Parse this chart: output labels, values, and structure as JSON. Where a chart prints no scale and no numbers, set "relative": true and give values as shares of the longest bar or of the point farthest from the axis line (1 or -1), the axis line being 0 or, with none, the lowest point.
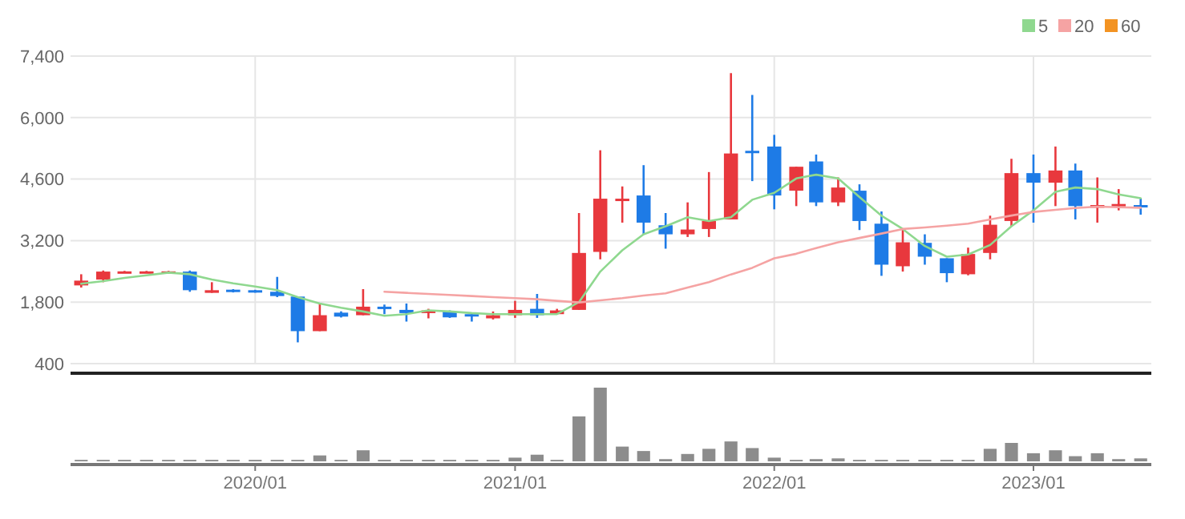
{
  "chart_data": [
    {
      "type": "candlestick",
      "x": [
        "2019-05",
        "2019-06",
        "2019-07",
        "2019-08",
        "2019-09",
        "2019-10",
        "2019-11",
        "2019-12",
        "2020-01",
        "2020-02",
        "2020-03",
        "2020-04",
        "2020-05",
        "2020-06",
        "2020-07",
        "2020-08",
        "2020-09",
        "2020-10",
        "2020-11",
        "2020-12",
        "2021-01",
        "2021-02",
        "2021-03",
        "2021-04",
        "2021-05",
        "2021-06",
        "2021-07",
        "2021-08",
        "2021-09",
        "2021-10",
        "2021-11",
        "2021-12",
        "2022-01",
        "2022-02",
        "2022-03",
        "2022-04",
        "2022-05",
        "2022-06",
        "2022-07",
        "2022-08",
        "2022-09",
        "2022-10",
        "2022-11",
        "2022-12",
        "2023-01",
        "2023-02",
        "2023-03",
        "2023-04",
        "2023-05",
        "2023-06"
      ],
      "ohlc": [
        [
          2180,
          2434,
          2132,
          2289
        ],
        [
          2313,
          2519,
          2253,
          2495
        ],
        [
          2480,
          2510,
          2470,
          2500
        ],
        [
          2490,
          2510,
          2480,
          2500
        ],
        [
          2490,
          2510,
          2480,
          2500
        ],
        [
          2495,
          2519,
          2035,
          2071
        ],
        [
          2011,
          2253,
          2011,
          2071
        ],
        [
          2083,
          2095,
          2020,
          2035
        ],
        [
          2071,
          2080,
          2015,
          2023
        ],
        [
          2035,
          2374,
          1914,
          1938
        ],
        [
          1926,
          1926,
          884,
          1139
        ],
        [
          1139,
          1768,
          1139,
          1502
        ],
        [
          1560,
          1590,
          1450,
          1470
        ],
        [
          1502,
          2095,
          1502,
          1696
        ],
        [
          1696,
          1744,
          1526,
          1647
        ],
        [
          1623,
          1768,
          1357,
          1550
        ],
        [
          1550,
          1647,
          1430,
          1611
        ],
        [
          1587,
          1611,
          1441,
          1453
        ],
        [
          1526,
          1526,
          1357,
          1478
        ],
        [
          1430,
          1587,
          1405,
          1502
        ],
        [
          1502,
          1829,
          1441,
          1623
        ],
        [
          1647,
          1986,
          1441,
          1502
        ],
        [
          1526,
          1647,
          1526,
          1611
        ],
        [
          1623,
          3827,
          1623,
          2919
        ],
        [
          2943,
          5256,
          2774,
          4154
        ],
        [
          4118,
          4433,
          3609,
          4154
        ],
        [
          4227,
          4917,
          3343,
          3609
        ],
        [
          3549,
          3827,
          3016,
          3343
        ],
        [
          3343,
          4070,
          3282,
          3452
        ],
        [
          3464,
          4760,
          3282,
          3646
        ],
        [
          3682,
          7012,
          3682,
          5183
        ],
        [
          5244,
          6515,
          4554,
          5208
        ],
        [
          5341,
          5607,
          3912,
          4227
        ],
        [
          4336,
          4881,
          3985,
          4881
        ],
        [
          5002,
          5159,
          3985,
          4070
        ],
        [
          4070,
          4638,
          3985,
          4408
        ],
        [
          4336,
          4481,
          3440,
          3646
        ],
        [
          3585,
          3864,
          2398,
          2652
        ],
        [
          2616,
          3464,
          2495,
          3161
        ],
        [
          3149,
          3343,
          2652,
          2834
        ],
        [
          2798,
          2798,
          2253,
          2459
        ],
        [
          2434,
          3040,
          2410,
          2895
        ],
        [
          2919,
          3767,
          2774,
          3561
        ],
        [
          3646,
          5062,
          3525,
          4736
        ],
        [
          4736,
          5159,
          3609,
          4518
        ],
        [
          4518,
          5341,
          3985,
          4796
        ],
        [
          4796,
          4953,
          3682,
          3985
        ],
        [
          3948,
          4638,
          3609,
          4009
        ],
        [
          3985,
          4372,
          3888,
          4033
        ],
        [
          4009,
          4166,
          3791,
          3985
        ]
      ],
      "colors": [
        "#e8383d",
        "#e8383d",
        "#e8383d",
        "#e8383d",
        "#e8383d",
        "#1e7be6",
        "#e8383d",
        "#1e7be6",
        "#1e7be6",
        "#1e7be6",
        "#1e7be6",
        "#e8383d",
        "#1e7be6",
        "#e8383d",
        "#1e7be6",
        "#1e7be6",
        "#e8383d",
        "#1e7be6",
        "#1e7be6",
        "#e8383d",
        "#e8383d",
        "#1e7be6",
        "#e8383d",
        "#e8383d",
        "#e8383d",
        "#e8383d",
        "#1e7be6",
        "#1e7be6",
        "#e8383d",
        "#e8383d",
        "#e8383d",
        "#1e7be6",
        "#1e7be6",
        "#e8383d",
        "#1e7be6",
        "#e8383d",
        "#1e7be6",
        "#1e7be6",
        "#e8383d",
        "#1e7be6",
        "#1e7be6",
        "#e8383d",
        "#e8383d",
        "#e8383d",
        "#1e7be6",
        "#e8383d",
        "#1e7be6",
        "#e8383d",
        "#e8383d",
        "#1e7be6"
      ],
      "series": [
        {
          "name": "5",
          "type": "line",
          "color": "#8fd88f",
          "values": [
            2217,
            2277,
            2350,
            2410,
            2471,
            2434,
            2313,
            2229,
            2156,
            2071,
            1914,
            1768,
            1672,
            1587,
            1490,
            1526,
            1611,
            1587,
            1550,
            1526,
            1526,
            1526,
            1526,
            1800,
            2495,
            2980,
            3343,
            3525,
            3730,
            3646,
            3730,
            4130,
            4287,
            4614,
            4700,
            4614,
            4190,
            3767,
            3464,
            3076,
            2834,
            2883,
            3100,
            3525,
            3888,
            4312,
            4408,
            4372,
            4251,
            4166
          ]
        },
        {
          "name": "20",
          "type": "line",
          "color": "#f5a3a3",
          "values": [
            null,
            null,
            null,
            null,
            null,
            null,
            null,
            null,
            null,
            null,
            null,
            null,
            null,
            null,
            2035,
            2011,
            1986,
            1962,
            1938,
            1914,
            1890,
            1865,
            1829,
            1792,
            1840,
            1890,
            1950,
            2000,
            2130,
            2253,
            2430,
            2580,
            2798,
            2900,
            3030,
            3161,
            3260,
            3360,
            3464,
            3500,
            3540,
            3585,
            3680,
            3770,
            3852,
            3900,
            3940,
            3973,
            3960,
            3948
          ]
        },
        {
          "name": "60",
          "type": "line",
          "color": "#f39322",
          "values": [
            null,
            null,
            null,
            null,
            null,
            null,
            null,
            null,
            null,
            null,
            null,
            null,
            null,
            null,
            null,
            null,
            null,
            null,
            null,
            null,
            null,
            null,
            null,
            null,
            null,
            null,
            null,
            null,
            null,
            null,
            null,
            null,
            null,
            null,
            null,
            null,
            null,
            null,
            null,
            null,
            null,
            null,
            null,
            null,
            null,
            null,
            null,
            null,
            null,
            null
          ]
        }
      ],
      "xlim": [
        "2019-04-16",
        "2023-06-16"
      ],
      "xticks": [
        {
          "value": "2020-01",
          "label": null
        },
        {
          "value": "2021-01",
          "label": null
        },
        {
          "value": "2022-01",
          "label": null
        },
        {
          "value": "2023-01",
          "label": null
        }
      ],
      "ylim": [
        400,
        7400
      ],
      "yticks": [
        400,
        {
          "value": 1800,
          "label": "1,800"
        },
        {
          "value": 3200,
          "label": "3,200"
        },
        {
          "value": 4600,
          "label": "4,600"
        },
        {
          "value": 6000,
          "label": "6,000"
        },
        {
          "value": 7400,
          "label": "7,400"
        }
      ],
      "grid": true,
      "tick_labels": "y",
      "legend": "top right"
    },
    {
      "type": "bar",
      "relative": true,
      "color": "#8c8c8c",
      "x": [
        "2019-05",
        "2019-06",
        "2019-07",
        "2019-08",
        "2019-09",
        "2019-10",
        "2019-11",
        "2019-12",
        "2020-01",
        "2020-02",
        "2020-03",
        "2020-04",
        "2020-05",
        "2020-06",
        "2020-07",
        "2020-08",
        "2020-09",
        "2020-10",
        "2020-11",
        "2020-12",
        "2021-01",
        "2021-02",
        "2021-03",
        "2021-04",
        "2021-05",
        "2021-06",
        "2021-07",
        "2021-08",
        "2021-09",
        "2021-10",
        "2021-11",
        "2021-12",
        "2022-01",
        "2022-02",
        "2022-03",
        "2022-04",
        "2022-05",
        "2022-06",
        "2022-07",
        "2022-08",
        "2022-09",
        "2022-10",
        "2022-11",
        "2022-12",
        "2023-01",
        "2023-02",
        "2023-03",
        "2023-04",
        "2023-05",
        "2023-06"
      ],
      "values": [
        0.02,
        0.02,
        0.02,
        0.02,
        0.02,
        0.02,
        0.02,
        0.02,
        0.02,
        0.02,
        0.02,
        0.08,
        0.02,
        0.15,
        0.02,
        0.02,
        0.02,
        0.02,
        0.02,
        0.02,
        0.05,
        0.09,
        0.02,
        0.61,
        1,
        0.2,
        0.14,
        0.03,
        0.1,
        0.17,
        0.27,
        0.18,
        0.05,
        0.02,
        0.03,
        0.04,
        0.02,
        0.02,
        0.02,
        0.02,
        0.02,
        0.02,
        0.17,
        0.25,
        0.11,
        0.15,
        0.07,
        0.11,
        0.03,
        0.04
      ],
      "xlim": [
        "2019-04-16",
        "2023-06-16"
      ],
      "xticks": [
        {
          "value": "2020-01",
          "label": "2020/01"
        },
        {
          "value": "2021-01",
          "label": "2021/01"
        },
        {
          "value": "2022-01",
          "label": "2022/01"
        },
        {
          "value": "2023-01",
          "label": "2023/01"
        }
      ],
      "tick_labels": "x"
    }
  ]
}
